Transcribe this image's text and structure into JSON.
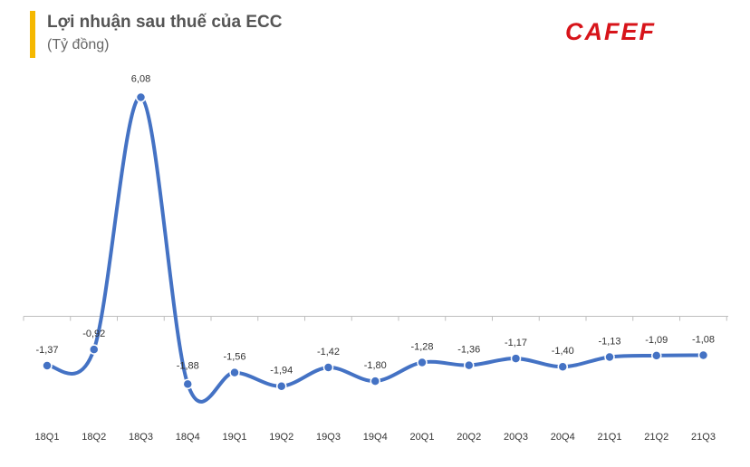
{
  "header": {
    "title": "Lợi nhuận  sau thuế của ECC",
    "subtitle": "(Tỷ đồng)",
    "logo_text": "CAFEF",
    "accent_color": "#f5b800",
    "logo_color": "#d7141a"
  },
  "chart_data": {
    "type": "line",
    "title": "Lợi nhuận  sau thuế của ECC",
    "subtitle": "(Tỷ đồng)",
    "xlabel": "",
    "ylabel": "",
    "categories": [
      "18Q1",
      "18Q2",
      "18Q3",
      "18Q4",
      "19Q1",
      "19Q2",
      "19Q3",
      "19Q4",
      "20Q1",
      "20Q2",
      "20Q3",
      "20Q4",
      "21Q1",
      "21Q2",
      "21Q3"
    ],
    "series": [
      {
        "values": [
          -1.37,
          -0.92,
          6.08,
          -1.88,
          -1.56,
          -1.94,
          -1.42,
          -1.8,
          -1.28,
          -1.36,
          -1.17,
          -1.4,
          -1.13,
          -1.09,
          -1.08
        ],
        "labels": [
          "-1,37",
          "-0,92",
          "6,08",
          "-1,88",
          "-1,56",
          "-1,94",
          "-1,42",
          "-1,80",
          "-1,28",
          "-1,36",
          "-1,17",
          "-1,40",
          "-1,13",
          "-1,09",
          "-1,08"
        ],
        "color": "#4472c4",
        "smooth": true
      }
    ],
    "ylim": [
      -3.2,
      7.5
    ],
    "grid": false,
    "legend": "none"
  }
}
